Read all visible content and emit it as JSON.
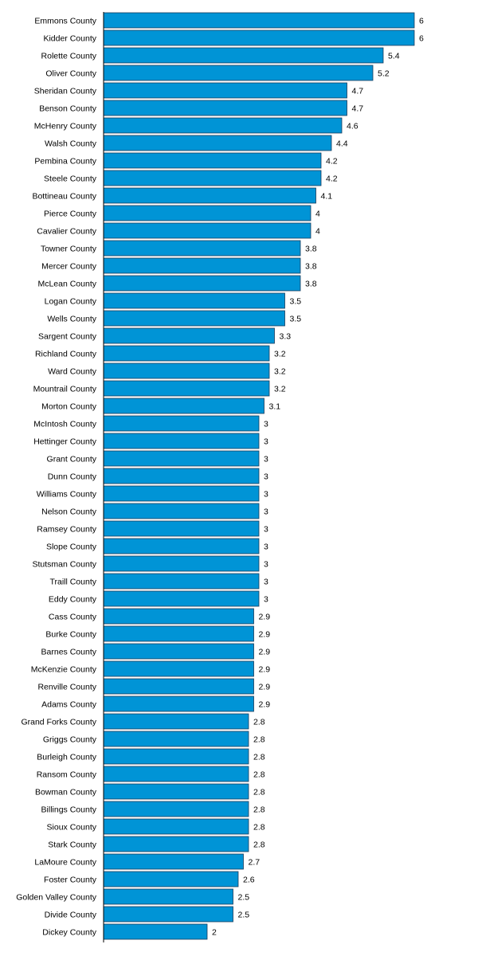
{
  "chart_data": {
    "type": "bar",
    "orientation": "horizontal",
    "bar_color": "#0094d6",
    "grid": false,
    "xlim": [
      0,
      6
    ],
    "categories": [
      "Emmons County",
      "Kidder County",
      "Rolette County",
      "Oliver County",
      "Sheridan County",
      "Benson County",
      "McHenry County",
      "Walsh County",
      "Pembina County",
      "Steele County",
      "Bottineau County",
      "Pierce County",
      "Cavalier County",
      "Towner County",
      "Mercer County",
      "McLean County",
      "Logan County",
      "Wells County",
      "Sargent County",
      "Richland County",
      "Ward County",
      "Mountrail County",
      "Morton County",
      "McIntosh County",
      "Hettinger County",
      "Grant County",
      "Dunn County",
      "Williams County",
      "Nelson County",
      "Ramsey County",
      "Slope County",
      "Stutsman County",
      "Traill County",
      "Eddy County",
      "Cass County",
      "Burke County",
      "Barnes County",
      "McKenzie County",
      "Renville County",
      "Adams County",
      "Grand Forks County",
      "Griggs County",
      "Burleigh County",
      "Ransom County",
      "Bowman County",
      "Billings County",
      "Sioux County",
      "Stark County",
      "LaMoure County",
      "Foster County",
      "Golden Valley County",
      "Divide County",
      "Dickey County"
    ],
    "values": [
      6,
      6,
      5.4,
      5.2,
      4.7,
      4.7,
      4.6,
      4.4,
      4.2,
      4.2,
      4.1,
      4,
      4,
      3.8,
      3.8,
      3.8,
      3.5,
      3.5,
      3.3,
      3.2,
      3.2,
      3.2,
      3.1,
      3,
      3,
      3,
      3,
      3,
      3,
      3,
      3,
      3,
      3,
      3,
      2.9,
      2.9,
      2.9,
      2.9,
      2.9,
      2.9,
      2.8,
      2.8,
      2.8,
      2.8,
      2.8,
      2.8,
      2.8,
      2.8,
      2.7,
      2.6,
      2.5,
      2.5,
      2
    ],
    "value_labels": [
      "6",
      "6",
      "5.4",
      "5.2",
      "4.7",
      "4.7",
      "4.6",
      "4.4",
      "4.2",
      "4.2",
      "4.1",
      "4",
      "4",
      "3.8",
      "3.8",
      "3.8",
      "3.5",
      "3.5",
      "3.3",
      "3.2",
      "3.2",
      "3.2",
      "3.1",
      "3",
      "3",
      "3",
      "3",
      "3",
      "3",
      "3",
      "3",
      "3",
      "3",
      "3",
      "2.9",
      "2.9",
      "2.9",
      "2.9",
      "2.9",
      "2.9",
      "2.8",
      "2.8",
      "2.8",
      "2.8",
      "2.8",
      "2.8",
      "2.8",
      "2.8",
      "2.7",
      "2.6",
      "2.5",
      "2.5",
      "2"
    ]
  }
}
